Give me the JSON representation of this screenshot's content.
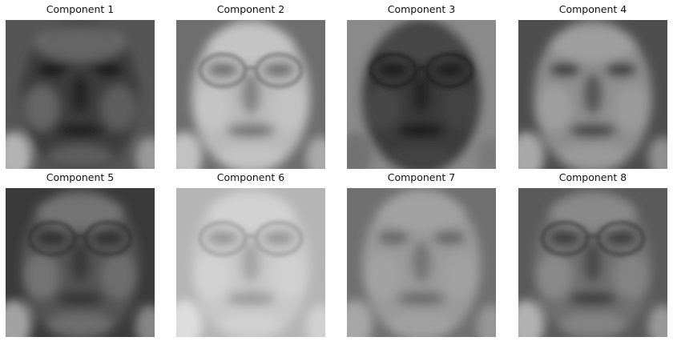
{
  "components": [
    {
      "title": "Component 1",
      "bg": "#555555",
      "skin": "#3e3e3e",
      "feature": "#151515",
      "hi": "#dcdcdc",
      "glasses": false
    },
    {
      "title": "Component 2",
      "bg": "#6e6e6e",
      "skin": "#b9b9b9",
      "feature": "#5a5a5a",
      "hi": "#e6e6e6",
      "glasses": true
    },
    {
      "title": "Component 3",
      "bg": "#8a8a8a",
      "skin": "#3a3a3a",
      "feature": "#141414",
      "hi": "#6a6a6a",
      "glasses": true
    },
    {
      "title": "Component 4",
      "bg": "#4e4e4e",
      "skin": "#8e8e8e",
      "feature": "#2a2a2a",
      "hi": "#cfcfcf",
      "glasses": false
    },
    {
      "title": "Component 5",
      "bg": "#3a3a3a",
      "skin": "#555555",
      "feature": "#262626",
      "hi": "#cfcfcf",
      "glasses": true
    },
    {
      "title": "Component 6",
      "bg": "#b5b5b5",
      "skin": "#c8c8c8",
      "feature": "#8a8a8a",
      "hi": "#eeeeee",
      "glasses": true
    },
    {
      "title": "Component 7",
      "bg": "#707070",
      "skin": "#9a9a9a",
      "feature": "#5a5a5a",
      "hi": "#bdbdbd",
      "glasses": false
    },
    {
      "title": "Component 8",
      "bg": "#5a5a5a",
      "skin": "#6f6f6f",
      "feature": "#2e2e2e",
      "hi": "#d6d6d6",
      "glasses": true
    }
  ]
}
